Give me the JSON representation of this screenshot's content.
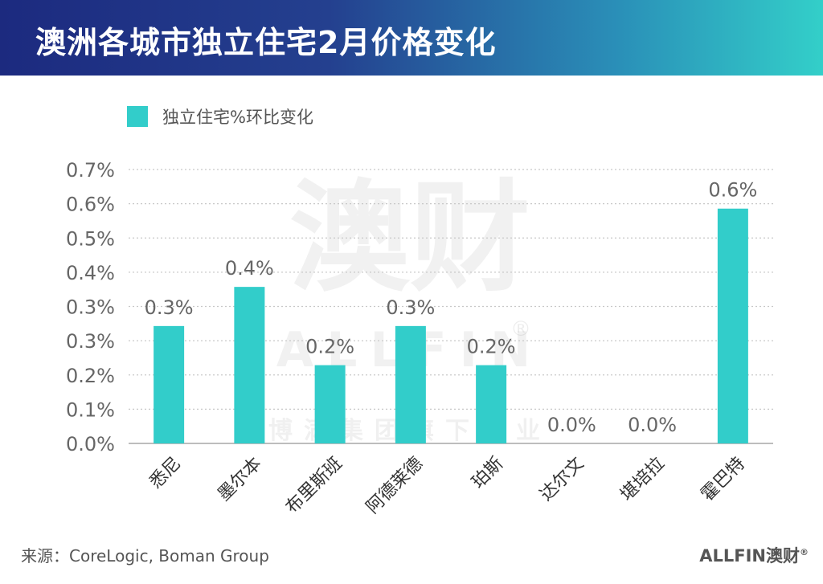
{
  "header": {
    "title": "澳洲各城市独立住宅2月价格变化"
  },
  "watermark": {
    "big": "澳财",
    "mid": "ALLFIN",
    "reg": "®",
    "sub": "博满集团旗下企业"
  },
  "footer": {
    "source": "来源：CoreLogic, Boman Group",
    "brand": "ALLFIN澳财",
    "brand_reg": "®"
  },
  "colors": {
    "bar": "#32cdca",
    "header_start": "#1c2a7f",
    "header_end": "#33cfc9",
    "grid": "#c8c8c8",
    "axis": "#bdbdbd",
    "text": "#666666"
  },
  "chart_data": {
    "type": "bar",
    "title": "澳洲各城市独立住宅2月价格变化",
    "categories": [
      "悉尼",
      "墨尔本",
      "布里斯班",
      "阿德莱德",
      "珀斯",
      "达尔文",
      "堪培拉",
      "霍巴特"
    ],
    "series": [
      {
        "name": "独立住宅%环比变化",
        "values": [
          0.3,
          0.4,
          0.2,
          0.3,
          0.2,
          0.0,
          0.0,
          0.6
        ]
      }
    ],
    "data_labels": [
      "0.3%",
      "0.4%",
      "0.2%",
      "0.3%",
      "0.2%",
      "0.0%",
      "0.0%",
      "0.6%"
    ],
    "y_ticks": [
      "0.0%",
      "0.1%",
      "0.2%",
      "0.3%",
      "0.3%",
      "0.4%",
      "0.5%",
      "0.6%",
      "0.7%"
    ],
    "ylim": [
      0,
      0.7
    ],
    "grid": true,
    "grid_style": "dotted",
    "legend_position": "top-left"
  }
}
